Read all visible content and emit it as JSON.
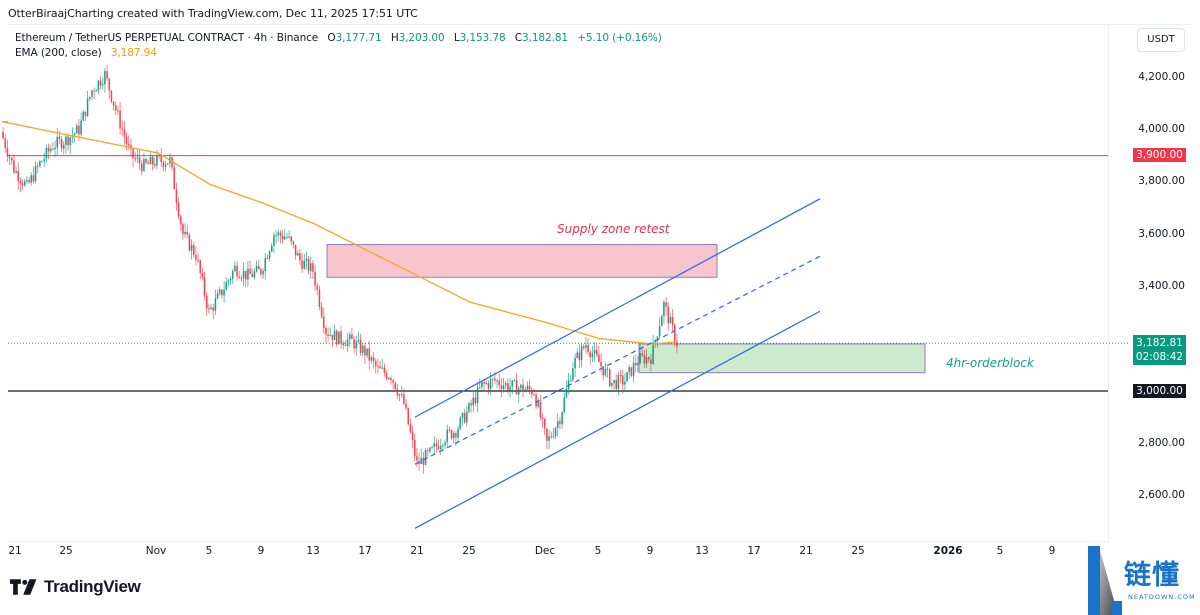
{
  "header": {
    "credit": "OtterBiraajCharting created with TradingView.com, Dec 11, 2025 17:51 UTC"
  },
  "legend": {
    "symbol": "Ethereum / TetherUS PERPETUAL CONTRACT · 4h · Binance",
    "open_label": "O",
    "open": "3,177.71",
    "high_label": "H",
    "high": "3,203.00",
    "low_label": "L",
    "low": "3,153.78",
    "close_label": "C",
    "close": "3,182.81",
    "change": "+5.10 (+0.16%)",
    "ema_label": "EMA (200, close)",
    "ema_value": "3,187.94"
  },
  "price_axis": {
    "currency_button": "USDT",
    "ticks": [
      {
        "label": "4,200.00",
        "y": 77
      },
      {
        "label": "4,000.00",
        "y": 129
      },
      {
        "label": "3,800.00",
        "y": 181
      },
      {
        "label": "3,600.00",
        "y": 234
      },
      {
        "label": "3,400.00",
        "y": 286
      },
      {
        "label": "2,800.00",
        "y": 443
      },
      {
        "label": "2,600.00",
        "y": 495
      }
    ],
    "badges": {
      "resistance": "3,900.00",
      "support": "3,000.00",
      "last_price": "3,182.81",
      "countdown": "02:08:42"
    }
  },
  "time_axis": {
    "ticks": [
      {
        "label": "21",
        "x": 15
      },
      {
        "label": "25",
        "x": 66
      },
      {
        "label": "Nov",
        "x": 156
      },
      {
        "label": "5",
        "x": 209
      },
      {
        "label": "9",
        "x": 261
      },
      {
        "label": "13",
        "x": 313
      },
      {
        "label": "17",
        "x": 365
      },
      {
        "label": "21",
        "x": 417
      },
      {
        "label": "25",
        "x": 469
      },
      {
        "label": "Dec",
        "x": 545
      },
      {
        "label": "5",
        "x": 598
      },
      {
        "label": "9",
        "x": 650
      },
      {
        "label": "13",
        "x": 702
      },
      {
        "label": "17",
        "x": 754
      },
      {
        "label": "21",
        "x": 806
      },
      {
        "label": "25",
        "x": 858
      },
      {
        "label": "2026",
        "x": 948,
        "bold": true
      },
      {
        "label": "5",
        "x": 1000
      },
      {
        "label": "9",
        "x": 1052
      }
    ]
  },
  "annotations": {
    "supply_zone_label": "Supply zone retest",
    "orderblock_label": "4hr-orderblock"
  },
  "footer": {
    "brand": "TradingView",
    "watermark_cn": "链懂",
    "watermark_en": "NEATDOWN.COM"
  },
  "colors": {
    "up": "#089981",
    "down": "#f23645",
    "ema": "#f5a623",
    "resistance": "#f23645",
    "support": "#131722",
    "channel": "#2962ff",
    "supply_fill": "#f9c5cc",
    "supply_border": "#8e7cc3",
    "orderblock_fill": "#cdeacd",
    "orderblock_border": "#8e7cc3",
    "supply_text": "#e0344b",
    "orderblock_text": "#16a085"
  },
  "chart_data": {
    "type": "candlestick",
    "title": "Ethereum / TetherUS PERPETUAL CONTRACT · 4h · Binance",
    "xlabel": "",
    "ylabel": "USDT",
    "ylim": [
      2480,
      4310
    ],
    "x_ticks": [
      "21",
      "25",
      "Nov",
      "5",
      "9",
      "13",
      "17",
      "21",
      "25",
      "Dec",
      "5",
      "9",
      "13",
      "17",
      "21",
      "25",
      "2026",
      "5",
      "9"
    ],
    "y_ticks": [
      2600,
      2800,
      3000,
      3200,
      3400,
      3600,
      3800,
      4000,
      4200
    ],
    "grid": false,
    "last_bar": {
      "open": 3177.71,
      "high": 3203.0,
      "low": 3153.78,
      "close": 3182.81,
      "change": 5.1,
      "change_pct": 0.16
    },
    "price_path": [
      {
        "date": "Oct 20",
        "price": 3990
      },
      {
        "date": "Oct 21",
        "price": 3850
      },
      {
        "date": "Oct 22",
        "price": 3780
      },
      {
        "date": "Oct 23",
        "price": 3870
      },
      {
        "date": "Oct 24",
        "price": 3940
      },
      {
        "date": "Oct 25",
        "price": 3960
      },
      {
        "date": "Oct 26",
        "price": 4000
      },
      {
        "date": "Oct 27",
        "price": 4150
      },
      {
        "date": "Oct 28",
        "price": 4210
      },
      {
        "date": "Oct 29",
        "price": 4050
      },
      {
        "date": "Oct 30",
        "price": 3900
      },
      {
        "date": "Oct 31",
        "price": 3860
      },
      {
        "date": "Nov 1",
        "price": 3880
      },
      {
        "date": "Nov 2",
        "price": 3880
      },
      {
        "date": "Nov 3",
        "price": 3600
      },
      {
        "date": "Nov 4",
        "price": 3520
      },
      {
        "date": "Nov 5",
        "price": 3300
      },
      {
        "date": "Nov 6",
        "price": 3380
      },
      {
        "date": "Nov 7",
        "price": 3470
      },
      {
        "date": "Nov 8",
        "price": 3440
      },
      {
        "date": "Nov 9",
        "price": 3460
      },
      {
        "date": "Nov 10",
        "price": 3600
      },
      {
        "date": "Nov 11",
        "price": 3590
      },
      {
        "date": "Nov 12",
        "price": 3500
      },
      {
        "date": "Nov 13",
        "price": 3460
      },
      {
        "date": "Nov 14",
        "price": 3230
      },
      {
        "date": "Nov 15",
        "price": 3200
      },
      {
        "date": "Nov 16",
        "price": 3190
      },
      {
        "date": "Nov 17",
        "price": 3150
      },
      {
        "date": "Nov 18",
        "price": 3080
      },
      {
        "date": "Nov 19",
        "price": 3060
      },
      {
        "date": "Nov 20",
        "price": 2950
      },
      {
        "date": "Nov 21",
        "price": 2720
      },
      {
        "date": "Nov 22",
        "price": 2760
      },
      {
        "date": "Nov 23",
        "price": 2820
      },
      {
        "date": "Nov 24",
        "price": 2850
      },
      {
        "date": "Nov 25",
        "price": 2930
      },
      {
        "date": "Nov 26",
        "price": 3020
      },
      {
        "date": "Nov 27",
        "price": 3040
      },
      {
        "date": "Nov 28",
        "price": 3020
      },
      {
        "date": "Nov 29",
        "price": 3010
      },
      {
        "date": "Nov 30",
        "price": 3000
      },
      {
        "date": "Dec 1",
        "price": 2800
      },
      {
        "date": "Dec 2",
        "price": 2900
      },
      {
        "date": "Dec 3",
        "price": 3100
      },
      {
        "date": "Dec 4",
        "price": 3180
      },
      {
        "date": "Dec 5",
        "price": 3110
      },
      {
        "date": "Dec 6",
        "price": 3030
      },
      {
        "date": "Dec 7",
        "price": 3040
      },
      {
        "date": "Dec 8",
        "price": 3120
      },
      {
        "date": "Dec 9",
        "price": 3130
      },
      {
        "date": "Dec 10",
        "price": 3330
      },
      {
        "date": "Dec 11",
        "price": 3182.81
      }
    ],
    "overlays": {
      "ema200": [
        {
          "date": "Oct 20",
          "value": 4030
        },
        {
          "date": "Oct 28",
          "value": 3950
        },
        {
          "date": "Nov 1",
          "value": 3910
        },
        {
          "date": "Nov 5",
          "value": 3790
        },
        {
          "date": "Nov 9",
          "value": 3720
        },
        {
          "date": "Nov 13",
          "value": 3640
        },
        {
          "date": "Nov 17",
          "value": 3540
        },
        {
          "date": "Nov 21",
          "value": 3440
        },
        {
          "date": "Nov 25",
          "value": 3340
        },
        {
          "date": "Dec 1",
          "value": 3260
        },
        {
          "date": "Dec 5",
          "value": 3200
        },
        {
          "date": "Dec 9",
          "value": 3180
        },
        {
          "date": "Dec 11",
          "value": 3187.94
        }
      ],
      "horizontal_lines": [
        {
          "label": "resistance",
          "price": 3900
        },
        {
          "label": "support",
          "price": 3000
        }
      ],
      "ascending_channel": {
        "upper": [
          {
            "x": 415,
            "price": 2900
          },
          {
            "x": 820,
            "price": 3735
          }
        ],
        "middle_dashed": [
          {
            "x": 415,
            "price": 2720
          },
          {
            "x": 820,
            "price": 3515
          }
        ],
        "lower": [
          {
            "x": 415,
            "price": 2475
          },
          {
            "x": 820,
            "price": 3305
          }
        ]
      },
      "zones": [
        {
          "name": "Supply zone retest",
          "price_top": 3560,
          "price_bottom": 3435,
          "from": "Nov 14",
          "to": "Dec 14"
        },
        {
          "name": "4hr-orderblock",
          "price_top": 3180,
          "price_bottom": 3070,
          "from": "Dec 8",
          "to": "Dec 30"
        }
      ]
    }
  }
}
